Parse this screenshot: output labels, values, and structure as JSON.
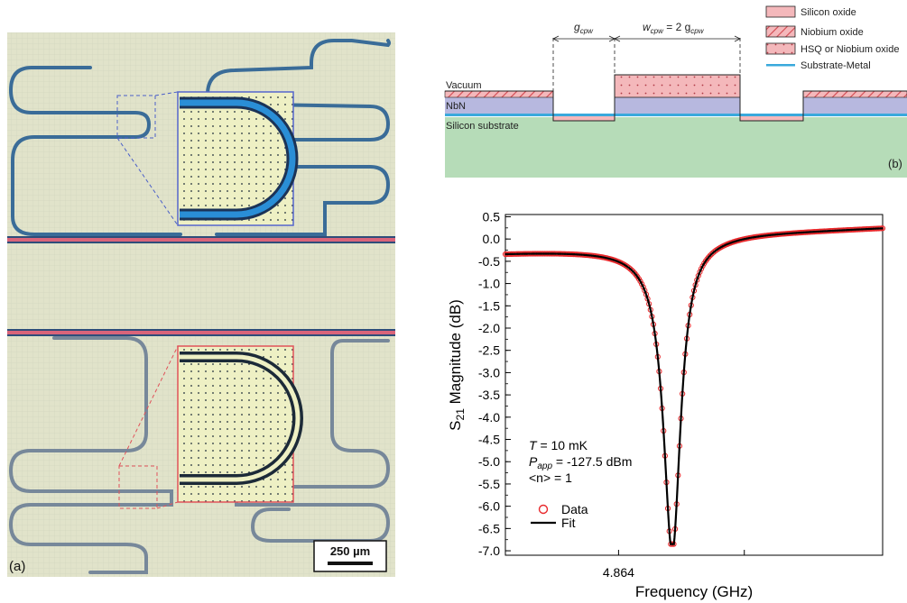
{
  "panel_a": {
    "label": "(a)",
    "scalebar": "250 µm"
  },
  "panel_b": {
    "label": "(b)",
    "legend": [
      {
        "name": "Silicon oxide",
        "color": "#f4b8bb",
        "pattern": "solid"
      },
      {
        "name": "Niobium oxide",
        "color": "#f4b8bb",
        "pattern": "hatch"
      },
      {
        "name": "HSQ or Niobium oxide",
        "color": "#f4b8bb",
        "pattern": "dots"
      },
      {
        "name": "Substrate-Metal",
        "color": "#39a9dc",
        "pattern": "line"
      }
    ],
    "layers": {
      "vacuum": "Vacuum",
      "nbn": "NbN",
      "substrate": "Silicon substrate"
    },
    "gap_label": "g",
    "gap_sub": "cpw",
    "width_label_a": "w",
    "width_sub_a": "cpw",
    "width_label_b": " = 2 g",
    "width_sub_b": "cpw",
    "colors": {
      "nbn": "#b7b8df",
      "substrate": "#b6dcb8",
      "oxide": "#f4b8bb",
      "metal": "#39a9dc"
    }
  },
  "chart_data": {
    "type": "line",
    "title": "",
    "xlabel": "Frequency (GHz)",
    "ylabel_main": "S",
    "ylabel_sub": "21",
    "ylabel_rest": " Magnitude (dB)",
    "xlim": [
      4.8631,
      4.8661
    ],
    "ylim": [
      -7.1,
      0.55
    ],
    "xtick_values": [
      4.864,
      4.865
    ],
    "xtick_labels": [
      "4.864",
      ""
    ],
    "yticks": [
      0.5,
      0.0,
      -0.5,
      -1.0,
      -1.5,
      -2.0,
      -2.5,
      -3.0,
      -3.5,
      -4.0,
      -4.5,
      -5.0,
      -5.5,
      -6.0,
      -6.5,
      -7.0
    ],
    "ytick_labels": [
      "0.5",
      "0.0",
      "-0.5",
      "-1.0",
      "-1.5",
      "-2.0",
      "-2.5",
      "-3.0",
      "-3.5",
      "-4.0",
      "-4.5",
      "-5.0",
      "-5.5",
      "-6.0",
      "-6.5",
      "-7.0"
    ],
    "resonance": {
      "f0": 4.86443,
      "half_width": 8.25e-05,
      "depth": 6.93,
      "dispersive": 0.28
    },
    "baseline": {
      "start_x": 4.8631,
      "start_y": -0.22,
      "end_x": 4.8661,
      "end_y": 0.17
    },
    "series": [
      {
        "name": "Data",
        "marker": "circle",
        "color": "#e8282b"
      },
      {
        "name": "Fit",
        "marker": "line",
        "color": "#000000"
      }
    ],
    "annotations": {
      "t_italic": "T",
      "t_rest": " = 10 mK",
      "p_italic": "P",
      "p_sub": "app",
      "p_rest": " = -127.5 dBm",
      "n_text": "<n> = 1"
    },
    "legend_position": "bottom-left",
    "grid": false
  }
}
